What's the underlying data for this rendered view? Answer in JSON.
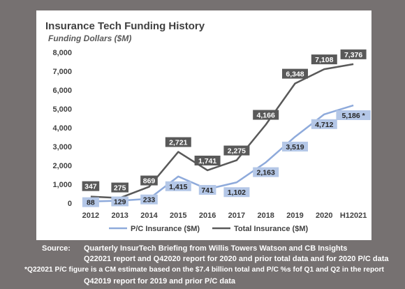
{
  "chart_data": {
    "type": "line",
    "title": "Insurance Tech Funding History",
    "subtitle": "Funding Dollars ($M)",
    "xlabel": "",
    "ylabel": "",
    "categories": [
      "2012",
      "2013",
      "2014",
      "2015",
      "2016",
      "2017",
      "2018",
      "2019",
      "2020",
      "H12021"
    ],
    "ylim": [
      0,
      8000
    ],
    "yticks": [
      0,
      1000,
      2000,
      3000,
      4000,
      5000,
      6000,
      7000,
      8000
    ],
    "ytick_labels": [
      "0",
      "1,000",
      "2,000",
      "3,000",
      "4,000",
      "5,000",
      "6,000",
      "7,000",
      "8,000"
    ],
    "grid": false,
    "legend_position": "bottom",
    "series": [
      {
        "name": "P/C Insurance ($M)",
        "color": "#8eaadb",
        "values": [
          88,
          129,
          233,
          1415,
          741,
          1102,
          2163,
          3519,
          4712,
          5186
        ],
        "labels": [
          "88",
          "129",
          "233",
          "1,415",
          "741",
          "1,102",
          "2,163",
          "3,519",
          "4,712",
          "5,186 *"
        ]
      },
      {
        "name": "Total Insurance ($M)",
        "color": "#595959",
        "values": [
          347,
          275,
          869,
          2721,
          1741,
          2275,
          4166,
          6348,
          7108,
          7376
        ],
        "labels": [
          "347",
          "275",
          "869",
          "2,721",
          "1,741",
          "2,275",
          "4,166",
          "6,348",
          "7,108",
          "7,376"
        ]
      }
    ]
  },
  "footer": {
    "source_label": "Source:",
    "source_line1": "Quarterly InsurTech Briefing from Willis Towers Watson and CB Insights",
    "source_line2": "Q22021 report and Q42020 report for 2020 and prior total data and for 2020 P/C data",
    "note_line1": "*Q22021 P/C figure is a CM estimate based on the $7.4 billion total and P/C %s fof Q1 and Q2 in the report",
    "note_line2": "Q42019 report for 2019 and prior P/C data"
  },
  "colors": {
    "background": "#767171",
    "panel": "#ffffff",
    "pc_series": "#8eaadb",
    "pc_label_bg": "#b4c7e7",
    "total_series": "#595959",
    "total_label_bg": "#595959"
  }
}
